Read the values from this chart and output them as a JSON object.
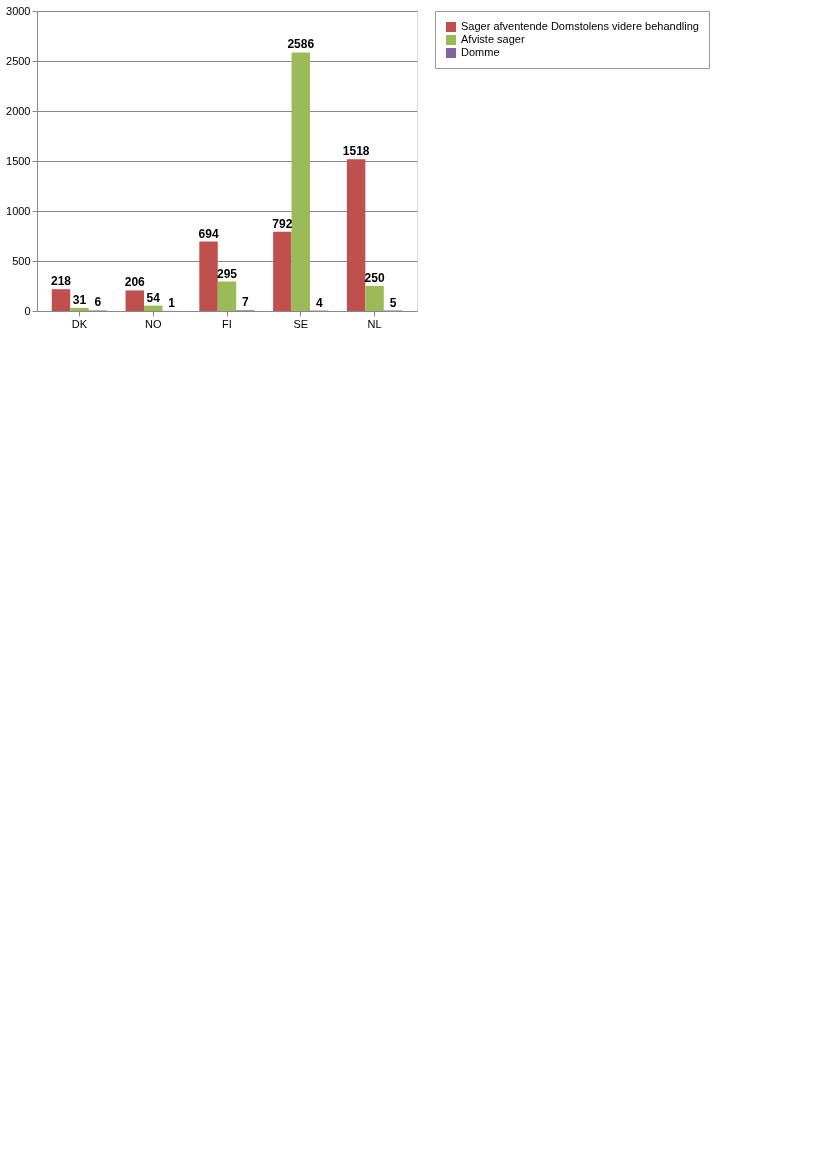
{
  "chart_data": {
    "type": "bar",
    "categories": [
      "DK",
      "NO",
      "FI",
      "SE",
      "NL"
    ],
    "series": [
      {
        "name": "Sager afventende Domstolens videre behandling",
        "color": "#c0504d",
        "values": [
          218,
          206,
          694,
          792,
          1518
        ]
      },
      {
        "name": "Afviste sager",
        "color": "#9bbb59",
        "values": [
          31,
          54,
          295,
          2586,
          250
        ]
      },
      {
        "name": "Domme",
        "color": "#8064a2",
        "values": [
          6,
          1,
          7,
          4,
          5
        ]
      }
    ],
    "ylim": [
      0,
      3000
    ],
    "yticks": [
      0,
      500,
      1000,
      1500,
      2000,
      2500,
      3000
    ],
    "grid": "y",
    "legend": "right",
    "data_labels": true
  }
}
